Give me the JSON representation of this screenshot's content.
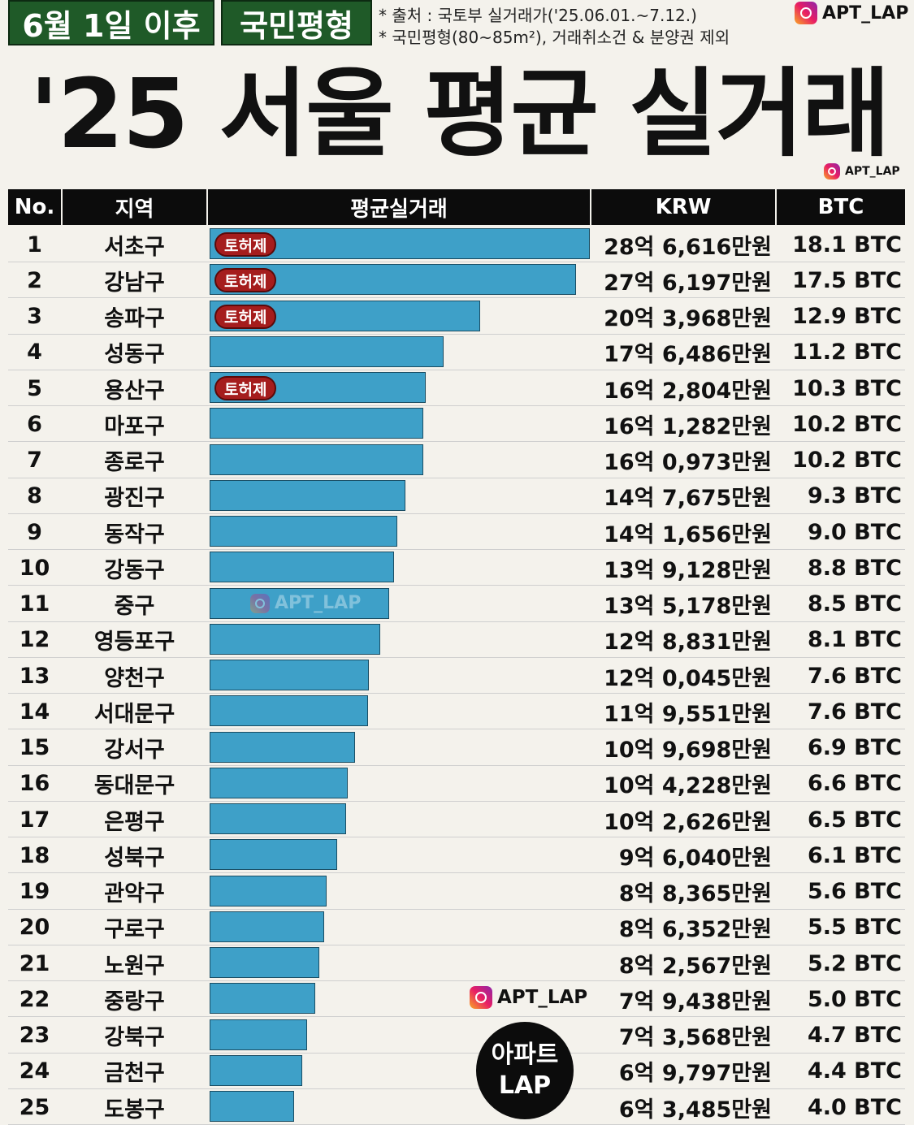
{
  "header": {
    "tag1": "6월 1일 이후",
    "tag2": "국민평형",
    "note1": "* 출처 : 국토부 실거래가('25.06.01.~7.12.)",
    "note2": "* 국민평형(80~85m²), 거래취소건 & 분양권 제외",
    "brand": "APT_LAP",
    "title": "'25 서울 평균 실거래",
    "brand_small": "APT_LAP"
  },
  "watermarks": {
    "mid": "APT_LAP",
    "lower": "APT_LAP",
    "circle_line1": "아파트",
    "circle_line2": "LAP"
  },
  "colors": {
    "bar": "#3ea0c8",
    "badge": "#a51d1d",
    "tag": "#1f5a28",
    "header": "#0c0c0c"
  },
  "chart_data": {
    "type": "bar",
    "orientation": "horizontal",
    "columns": [
      "No.",
      "지역",
      "평균실거래",
      "KRW",
      "BTC"
    ],
    "badge_label": "토허제",
    "rows": [
      {
        "no": "1",
        "region": "서초구",
        "value": 286616,
        "krw": "28억 6,616만원",
        "btc": "18.1 BTC",
        "badge": true
      },
      {
        "no": "2",
        "region": "강남구",
        "value": 276197,
        "krw": "27억 6,197만원",
        "btc": "17.5 BTC",
        "badge": true
      },
      {
        "no": "3",
        "region": "송파구",
        "value": 203968,
        "krw": "20억 3,968만원",
        "btc": "12.9 BTC",
        "badge": true
      },
      {
        "no": "4",
        "region": "성동구",
        "value": 176486,
        "krw": "17억 6,486만원",
        "btc": "11.2 BTC",
        "badge": false
      },
      {
        "no": "5",
        "region": "용산구",
        "value": 162804,
        "krw": "16억 2,804만원",
        "btc": "10.3 BTC",
        "badge": true
      },
      {
        "no": "6",
        "region": "마포구",
        "value": 161282,
        "krw": "16억 1,282만원",
        "btc": "10.2 BTC",
        "badge": false
      },
      {
        "no": "7",
        "region": "종로구",
        "value": 160973,
        "krw": "16억 0,973만원",
        "btc": "10.2 BTC",
        "badge": false
      },
      {
        "no": "8",
        "region": "광진구",
        "value": 147675,
        "krw": "14억 7,675만원",
        "btc": "9.3 BTC",
        "badge": false
      },
      {
        "no": "9",
        "region": "동작구",
        "value": 141656,
        "krw": "14억 1,656만원",
        "btc": "9.0 BTC",
        "badge": false
      },
      {
        "no": "10",
        "region": "강동구",
        "value": 139128,
        "krw": "13억 9,128만원",
        "btc": "8.8 BTC",
        "badge": false
      },
      {
        "no": "11",
        "region": "중구",
        "value": 135178,
        "krw": "13억 5,178만원",
        "btc": "8.5 BTC",
        "badge": false
      },
      {
        "no": "12",
        "region": "영등포구",
        "value": 128831,
        "krw": "12억 8,831만원",
        "btc": "8.1 BTC",
        "badge": false
      },
      {
        "no": "13",
        "region": "양천구",
        "value": 120045,
        "krw": "12억 0,045만원",
        "btc": "7.6 BTC",
        "badge": false
      },
      {
        "no": "14",
        "region": "서대문구",
        "value": 119551,
        "krw": "11억 9,551만원",
        "btc": "7.6 BTC",
        "badge": false
      },
      {
        "no": "15",
        "region": "강서구",
        "value": 109698,
        "krw": "10억 9,698만원",
        "btc": "6.9 BTC",
        "badge": false
      },
      {
        "no": "16",
        "region": "동대문구",
        "value": 104228,
        "krw": "10억 4,228만원",
        "btc": "6.6 BTC",
        "badge": false
      },
      {
        "no": "17",
        "region": "은평구",
        "value": 102626,
        "krw": "10억 2,626만원",
        "btc": "6.5 BTC",
        "badge": false
      },
      {
        "no": "18",
        "region": "성북구",
        "value": 96040,
        "krw": "9억 6,040만원",
        "btc": "6.1 BTC",
        "badge": false
      },
      {
        "no": "19",
        "region": "관악구",
        "value": 88365,
        "krw": "8억 8,365만원",
        "btc": "5.6 BTC",
        "badge": false
      },
      {
        "no": "20",
        "region": "구로구",
        "value": 86352,
        "krw": "8억 6,352만원",
        "btc": "5.5 BTC",
        "badge": false
      },
      {
        "no": "21",
        "region": "노원구",
        "value": 82567,
        "krw": "8억 2,567만원",
        "btc": "5.2 BTC",
        "badge": false
      },
      {
        "no": "22",
        "region": "중랑구",
        "value": 79438,
        "krw": "7억 9,438만원",
        "btc": "5.0 BTC",
        "badge": false
      },
      {
        "no": "23",
        "region": "강북구",
        "value": 73568,
        "krw": "7억 3,568만원",
        "btc": "4.7 BTC",
        "badge": false
      },
      {
        "no": "24",
        "region": "금천구",
        "value": 69797,
        "krw": "6억 9,797만원",
        "btc": "4.4 BTC",
        "badge": false
      },
      {
        "no": "25",
        "region": "도봉구",
        "value": 63485,
        "krw": "6억 3,485만원",
        "btc": "4.0 BTC",
        "badge": false
      }
    ]
  }
}
